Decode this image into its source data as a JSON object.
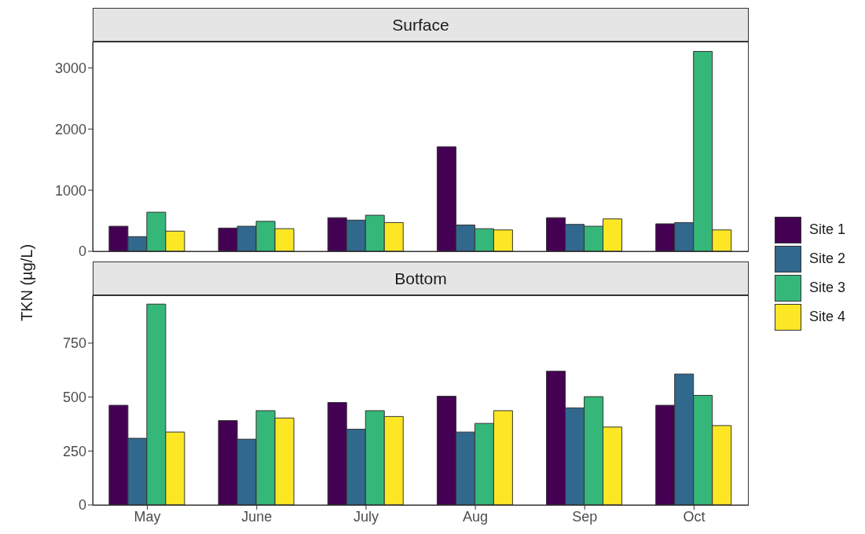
{
  "chart_data": [
    {
      "type": "bar",
      "title": "Surface",
      "ylabel": "TKN (µg/L)",
      "categories": [
        null,
        null,
        null,
        null,
        null,
        null
      ],
      "ylim": [
        0,
        3430
      ],
      "yticks": [
        0,
        1000,
        2000,
        3000
      ],
      "grid": false,
      "tick_labels": "y",
      "series": [
        {
          "color": "#440154",
          "values": [
            410,
            380,
            550,
            1710,
            550,
            450
          ]
        },
        {
          "color": "#31688e",
          "values": [
            240,
            410,
            510,
            430,
            440,
            470
          ]
        },
        {
          "color": "#35b779",
          "values": [
            640,
            490,
            590,
            370,
            410,
            3270
          ]
        },
        {
          "color": "#fde725",
          "values": [
            330,
            370,
            470,
            350,
            530,
            350
          ]
        }
      ]
    },
    {
      "type": "bar",
      "title": "Bottom",
      "categories": [
        "May",
        "June",
        "July",
        "Aug",
        "Sep",
        "Oct"
      ],
      "ylim": [
        0,
        972
      ],
      "yticks": [
        0,
        250,
        500,
        750
      ],
      "grid": false,
      "legend": "right",
      "series": [
        {
          "name": "Site 1",
          "color": "#440154",
          "values": [
            462,
            391,
            475,
            504,
            620,
            462
          ]
        },
        {
          "name": "Site 2",
          "color": "#31688e",
          "values": [
            309,
            305,
            351,
            338,
            450,
            607
          ]
        },
        {
          "name": "Site 3",
          "color": "#35b779",
          "values": [
            931,
            437,
            437,
            378,
            502,
            508
          ]
        },
        {
          "name": "Site 4",
          "color": "#fde725",
          "values": [
            338,
            403,
            410,
            437,
            361,
            368
          ]
        }
      ]
    }
  ]
}
